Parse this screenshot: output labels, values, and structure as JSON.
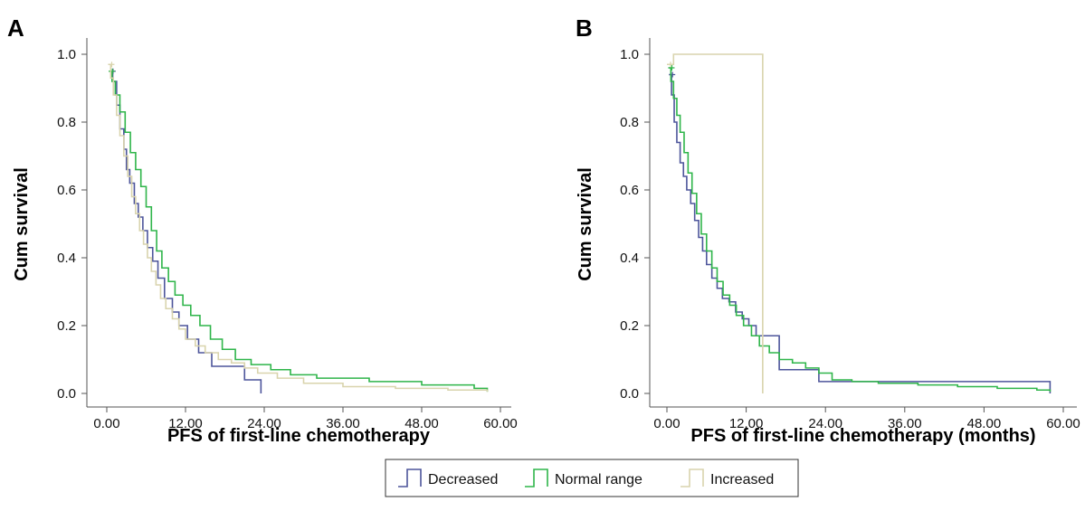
{
  "colors": {
    "decreased": "#4d559b",
    "normal_range": "#2fb54a",
    "increased": "#d9d4ad",
    "axis": "#555555"
  },
  "legend": {
    "items": [
      {
        "label": "Decreased",
        "color_key": "decreased"
      },
      {
        "label": "Normal range",
        "color_key": "normal_range"
      },
      {
        "label": "Increased",
        "color_key": "increased"
      }
    ]
  },
  "chart_data": [
    {
      "type": "line",
      "panel_label": "A",
      "xlabel": "PFS of first-line chemotherapy",
      "ylabel": "Cum survival",
      "xlim": [
        -2,
        60
      ],
      "ylim": [
        0,
        1.05
      ],
      "x_ticks": [
        0,
        12,
        24,
        36,
        48,
        60
      ],
      "x_tick_labels": [
        "0.00",
        "12.00",
        "24.00",
        "36.00",
        "48.00",
        "60.00"
      ],
      "y_ticks": [
        0,
        0.2,
        0.4,
        0.6,
        0.8,
        1.0
      ],
      "y_tick_labels": [
        "0.0",
        "0.2",
        "0.4",
        "0.6",
        "0.8",
        "1.0"
      ],
      "step": true,
      "series": [
        {
          "name": "Decreased",
          "color_key": "decreased",
          "x": [
            0.4,
            0.9,
            1.5,
            2.0,
            2.6,
            3.0,
            3.5,
            4.2,
            4.8,
            5.5,
            6.2,
            7.0,
            7.8,
            8.8,
            10.0,
            11.0,
            12.3,
            14.0,
            16.0,
            18.0,
            21.0,
            23.5
          ],
          "y": [
            0.95,
            0.92,
            0.85,
            0.78,
            0.72,
            0.66,
            0.62,
            0.56,
            0.52,
            0.48,
            0.43,
            0.39,
            0.34,
            0.28,
            0.24,
            0.2,
            0.16,
            0.12,
            0.08,
            0.08,
            0.04,
            0.0
          ]
        },
        {
          "name": "Normal range",
          "color_key": "normal_range",
          "x": [
            0.3,
            0.8,
            1.3,
            2.0,
            2.8,
            3.6,
            4.4,
            5.2,
            6.0,
            6.8,
            7.6,
            8.4,
            9.4,
            10.4,
            11.6,
            12.8,
            14.2,
            15.8,
            17.6,
            19.6,
            22.0,
            25.0,
            28.0,
            32.0,
            40.0,
            48.0,
            56.0,
            58.0
          ],
          "y": [
            0.95,
            0.92,
            0.88,
            0.83,
            0.77,
            0.71,
            0.66,
            0.61,
            0.55,
            0.48,
            0.42,
            0.37,
            0.33,
            0.29,
            0.26,
            0.23,
            0.2,
            0.16,
            0.13,
            0.1,
            0.085,
            0.07,
            0.055,
            0.045,
            0.035,
            0.025,
            0.015,
            0.005
          ]
        },
        {
          "name": "Increased",
          "color_key": "increased",
          "x": [
            0.2,
            0.6,
            1.0,
            1.5,
            2.0,
            2.6,
            3.2,
            3.8,
            4.4,
            5.0,
            5.6,
            6.2,
            6.8,
            7.5,
            8.2,
            9.0,
            10.0,
            11.0,
            12.0,
            13.5,
            15.0,
            17.0,
            19.0,
            21.0,
            23.0,
            26.0,
            30.0,
            36.0,
            44.0,
            52.0,
            58.0
          ],
          "y": [
            0.97,
            0.93,
            0.88,
            0.82,
            0.76,
            0.7,
            0.64,
            0.58,
            0.53,
            0.48,
            0.44,
            0.4,
            0.36,
            0.32,
            0.28,
            0.25,
            0.22,
            0.19,
            0.16,
            0.14,
            0.12,
            0.1,
            0.09,
            0.075,
            0.06,
            0.045,
            0.03,
            0.02,
            0.015,
            0.01,
            0.005
          ]
        }
      ]
    },
    {
      "type": "line",
      "panel_label": "B",
      "xlabel": "PFS of first-line chemotherapy (months)",
      "ylabel": "Cum survival",
      "xlim": [
        -2,
        60
      ],
      "ylim": [
        0,
        1.05
      ],
      "x_ticks": [
        0,
        12,
        24,
        36,
        48,
        60
      ],
      "x_tick_labels": [
        "0.00",
        "12.00",
        "24.00",
        "36.00",
        "48.00",
        "60.00"
      ],
      "y_ticks": [
        0,
        0.2,
        0.4,
        0.6,
        0.8,
        1.0
      ],
      "y_tick_labels": [
        "0.0",
        "0.2",
        "0.4",
        "0.6",
        "0.8",
        "1.0"
      ],
      "step": true,
      "series": [
        {
          "name": "Decreased",
          "color_key": "decreased",
          "x": [
            0.3,
            0.7,
            1.1,
            1.5,
            2.0,
            2.5,
            3.0,
            3.6,
            4.2,
            4.8,
            5.4,
            6.0,
            6.8,
            7.6,
            8.4,
            9.4,
            10.4,
            11.4,
            12.4,
            13.5,
            15.0,
            17.0,
            20.0,
            23.0,
            36.0,
            58.0
          ],
          "y": [
            0.94,
            0.88,
            0.8,
            0.74,
            0.68,
            0.64,
            0.6,
            0.56,
            0.51,
            0.46,
            0.42,
            0.38,
            0.34,
            0.31,
            0.28,
            0.27,
            0.24,
            0.22,
            0.2,
            0.17,
            0.17,
            0.07,
            0.07,
            0.035,
            0.035,
            0.0
          ]
        },
        {
          "name": "Normal range",
          "color_key": "normal_range",
          "x": [
            0.2,
            0.6,
            1.0,
            1.5,
            2.0,
            2.6,
            3.2,
            3.8,
            4.5,
            5.2,
            6.0,
            6.8,
            7.6,
            8.5,
            9.5,
            10.5,
            11.6,
            12.8,
            14.0,
            15.5,
            17.0,
            19.0,
            21.0,
            23.0,
            25.0,
            28.0,
            32.0,
            38.0,
            44.0,
            50.0,
            56.0,
            58.0
          ],
          "y": [
            0.96,
            0.92,
            0.87,
            0.82,
            0.77,
            0.71,
            0.65,
            0.59,
            0.53,
            0.47,
            0.42,
            0.37,
            0.33,
            0.29,
            0.26,
            0.23,
            0.2,
            0.17,
            0.14,
            0.12,
            0.1,
            0.09,
            0.075,
            0.06,
            0.04,
            0.035,
            0.03,
            0.025,
            0.02,
            0.015,
            0.01,
            0.005
          ]
        },
        {
          "name": "Increased",
          "color_key": "increased",
          "x": [
            0.0,
            1.0,
            14.5
          ],
          "y": [
            0.97,
            1.0,
            0.0
          ]
        }
      ]
    }
  ]
}
